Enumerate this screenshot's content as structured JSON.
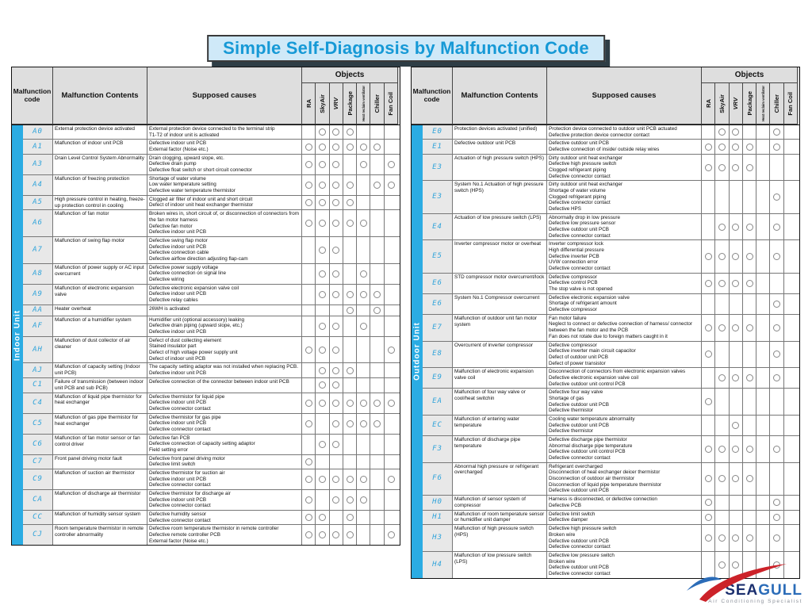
{
  "title": "Simple Self-Diagnosis by Malfunction Code",
  "columns": {
    "code_header": "Malfunction\ncode",
    "contents_header": "Malfunction Contents",
    "causes_header": "Supposed causes",
    "objects_header": "Objects",
    "object_cols": [
      "RA",
      "SkyAir",
      "VRV",
      "Package",
      "Heat reclaim ventilator",
      "Chiller",
      "Fan Coil"
    ]
  },
  "colors": {
    "title_text": "#1699d6",
    "title_bg": "#cfe9f8",
    "group_strip": "#2bace3",
    "code_text": "#2fa3da",
    "header_bg": "#dedede"
  },
  "tables": [
    {
      "group": "Indoor Unit",
      "rows": [
        {
          "code": "A0",
          "contents": "External protection device activated",
          "causes": [
            "External protection device connected to the terminal strip",
            "T1-T2 of indoor unit is activated"
          ],
          "marks": [
            0,
            1,
            1,
            1,
            0,
            0,
            0
          ]
        },
        {
          "code": "A1",
          "contents": "Malfunction of indoor unit PCB",
          "causes": [
            "Defective indoor unit PCB",
            "External factor (Noise etc.)"
          ],
          "marks": [
            1,
            1,
            1,
            1,
            1,
            1,
            0
          ]
        },
        {
          "code": "A3",
          "contents": "Drain Level Control System Abnormality",
          "causes": [
            "Drain clogging, upward slope, etc.",
            "Defective drain pump",
            "Defective float switch or short circuit connector"
          ],
          "marks": [
            1,
            1,
            1,
            0,
            1,
            0,
            1
          ]
        },
        {
          "code": "A4",
          "contents": "Malfunction of freezing protection",
          "causes": [
            "Shortage of water volume",
            "Low water temperature setting",
            "Defective water temperature thermistor"
          ],
          "marks": [
            1,
            1,
            1,
            1,
            0,
            1,
            1
          ]
        },
        {
          "code": "A5",
          "contents": "High pressure control in heating, freeze-up protection control in cooling",
          "causes": [
            "Clogged air filter of indoor unit and short circuit",
            "Defect of indoor unit heat exchanger thermistor"
          ],
          "marks": [
            1,
            1,
            1,
            1,
            0,
            0,
            0
          ]
        },
        {
          "code": "A6",
          "contents": "Malfunction of fan motor",
          "causes": [
            "Broken wires in, short circuit of, or disconnection of connectors from the fan motor harness",
            "Defective fan motor",
            "Defective indoor unit PCB"
          ],
          "marks": [
            1,
            1,
            1,
            1,
            1,
            0,
            0
          ]
        },
        {
          "code": "A7",
          "contents": "Malfunction of swing flap motor",
          "causes": [
            "Defective swing flap motor",
            "Defective indoor unit PCB",
            "Defective connection cable",
            "Defective airflow direction adjusting flap-cam"
          ],
          "marks": [
            0,
            1,
            1,
            0,
            0,
            0,
            0
          ]
        },
        {
          "code": "A8",
          "contents": "Malfunction of power supply or AC input overcurrent",
          "causes": [
            "Defective power supply voltage",
            "Defective connection on signal line",
            "Defective wiring"
          ],
          "marks": [
            0,
            1,
            1,
            0,
            1,
            0,
            0
          ]
        },
        {
          "code": "A9",
          "contents": "Malfunction of electronic expansion valve",
          "causes": [
            "Defective electronic expansion valve coil",
            "Defective indoor unit PCB",
            "Defective relay cables"
          ],
          "marks": [
            0,
            1,
            1,
            1,
            1,
            1,
            0
          ]
        },
        {
          "code": "AA",
          "contents": "Heater overheat",
          "causes": [
            "26WH is activated"
          ],
          "marks": [
            0,
            0,
            0,
            1,
            0,
            1,
            0
          ]
        },
        {
          "code": "AF",
          "contents": "Malfunction of a humidifier system",
          "causes": [
            "Humidifier unit (optional accessory) leaking",
            "Defective drain piping (upward slope, etc.)",
            "Defective indoor unit PCB"
          ],
          "marks": [
            0,
            1,
            1,
            0,
            1,
            0,
            0
          ]
        },
        {
          "code": "AH",
          "contents": "Malfunction of dust collector of air cleaner",
          "causes": [
            "Defect of dust collecting element",
            "Stained insulator part",
            "Defect of high voltage power supply unit",
            "Defect of indoor unit PCB"
          ],
          "marks": [
            1,
            1,
            1,
            0,
            0,
            0,
            1
          ]
        },
        {
          "code": "AJ",
          "contents": "Malfunction of capacity setting (Indoor unit PCB)",
          "causes": [
            "The capacity setting adaptor was not installed when replacing PCB.",
            "Defective indoor unit PCB"
          ],
          "marks": [
            0,
            1,
            1,
            1,
            0,
            0,
            0
          ]
        },
        {
          "code": "C1",
          "contents": "Failure of transmission (between indoor unit PCB and sub PCB)",
          "causes": [
            "Defective connection of the connector between indoor unit PCB"
          ],
          "marks": [
            0,
            1,
            1,
            0,
            0,
            0,
            0
          ]
        },
        {
          "code": "C4",
          "contents": "Malfunction of liquid pipe thermistor for heat exchanger",
          "causes": [
            "Defective thermistor for liquid pipe",
            "Defective indoor unit PCB",
            "Defective connector contact"
          ],
          "marks": [
            1,
            1,
            1,
            1,
            1,
            1,
            1
          ]
        },
        {
          "code": "C5",
          "contents": "Malfunction of gas pipe thermistor for heat exchanger",
          "causes": [
            "Defective thermistor for gas pipe",
            "Defective indoor unit PCB",
            "Defective connector contact"
          ],
          "marks": [
            1,
            0,
            1,
            1,
            1,
            1,
            0
          ]
        },
        {
          "code": "C6",
          "contents": "Malfunction of fan motor sensor or fan control driver",
          "causes": [
            "Defective fan PCB",
            "Defective connection of capacity setting adaptor",
            "Field setting error"
          ],
          "marks": [
            0,
            1,
            1,
            0,
            0,
            0,
            0
          ]
        },
        {
          "code": "C7",
          "contents": "Front panel driving motor fault",
          "causes": [
            "Defective front panel driving motor",
            "Defective limit switch"
          ],
          "marks": [
            1,
            0,
            0,
            0,
            0,
            0,
            0
          ]
        },
        {
          "code": "C9",
          "contents": "Malfunction of suction air thermistor",
          "causes": [
            "Defective thermistor for suction air",
            "Defective indoor unit PCB",
            "Defective connector contact"
          ],
          "marks": [
            1,
            1,
            1,
            1,
            1,
            0,
            1
          ]
        },
        {
          "code": "CA",
          "contents": "Malfunction of discharge air thermistor",
          "causes": [
            "Defective thermistor for discharge air",
            "Defective indoor unit PCB",
            "Defective connector contact"
          ],
          "marks": [
            1,
            0,
            1,
            1,
            1,
            0,
            0
          ]
        },
        {
          "code": "CC",
          "contents": "Malfunction of humidity sensor system",
          "causes": [
            "Defective humidity sensor",
            "Defective connector contact"
          ],
          "marks": [
            1,
            1,
            0,
            1,
            0,
            0,
            0
          ]
        },
        {
          "code": "CJ",
          "contents": "Room temperature thermistor in remote controller abnormality",
          "causes": [
            "Defective room temperature thermistor in remote controller",
            "Defective remote controller PCB",
            "External factor (Noise etc.)"
          ],
          "marks": [
            1,
            1,
            1,
            1,
            0,
            0,
            1
          ]
        }
      ]
    },
    {
      "group": "Outdoor Unit",
      "rows": [
        {
          "code": "E0",
          "contents": "Protection devices activated (unified)",
          "causes": [
            "Protection device connected to outdoor unit PCB actuated",
            "Defective protection device connector contact"
          ],
          "marks": [
            0,
            1,
            1,
            0,
            0,
            1,
            0
          ]
        },
        {
          "code": "E1",
          "contents": "Defective outdoor unit PCB",
          "causes": [
            "Defective outdoor unit PCB",
            "Defective connection of inside/ outside relay wires"
          ],
          "marks": [
            1,
            1,
            1,
            1,
            0,
            1,
            0
          ]
        },
        {
          "code": "E3",
          "contents": "Actuation of high pressure switch (HPS)",
          "causes": [
            "Dirty outdoor unit heat exchanger",
            "Defective high pressure switch",
            "Clogged refrigerant piping",
            "Defective connector contact"
          ],
          "marks": [
            1,
            1,
            1,
            1,
            0,
            0,
            0
          ]
        },
        {
          "code": "E3",
          "contents": "System No.1 Actuation of high pressure switch (HPS)",
          "causes": [
            "Dirty outdoor unit heat exchanger",
            "Shortage of water volume",
            "Clogged refrigerant piping",
            "Defective connector contact",
            "Defective HPS"
          ],
          "marks": [
            0,
            0,
            0,
            0,
            0,
            1,
            0
          ]
        },
        {
          "code": "E4",
          "contents": "Actuation of low pressure switch (LPS)",
          "causes": [
            "Abnormally drop in low pressure",
            "Defective low pressure sensor",
            "Defective outdoor unit PCB",
            "Defective connector contact"
          ],
          "marks": [
            0,
            1,
            1,
            1,
            0,
            1,
            0
          ]
        },
        {
          "code": "E5",
          "contents": "Inverter compressor motor or overheat",
          "causes": [
            "Inverter compressor lock",
            "High differential pressure",
            "Defective inverter PCB",
            "UVW connection error",
            "Defective connector contact"
          ],
          "marks": [
            1,
            1,
            1,
            1,
            0,
            1,
            0
          ]
        },
        {
          "code": "E6",
          "contents": "STD compressor motor overcurrent/lock",
          "causes": [
            "Defective compressor",
            "Defective control PCB",
            "The stop valve is not opened"
          ],
          "marks": [
            1,
            1,
            1,
            1,
            0,
            0,
            0
          ]
        },
        {
          "code": "E6",
          "contents": "System No.1 Compressor overcurrent",
          "causes": [
            "Defective electronic expansion valve",
            "Shortage of refrigerant amount",
            "Defective compressor"
          ],
          "marks": [
            0,
            0,
            0,
            0,
            0,
            1,
            0
          ]
        },
        {
          "code": "E7",
          "contents": "Malfunction of outdoor unit fan motor system",
          "causes": [
            "Fan motor failure",
            "Neglect to connect or defective connection of harness/ connector between the fan motor and the PCB",
            "Fan does not rotate due to foreign matters caught in it"
          ],
          "marks": [
            1,
            1,
            1,
            1,
            0,
            1,
            0
          ]
        },
        {
          "code": "E8",
          "contents": "Overcurrent of inverter compressor",
          "causes": [
            "Defective compressor",
            "Defective inverter main circuit capacitor",
            "Defect of outdoor unit PCB",
            "Defect of power transistor"
          ],
          "marks": [
            1,
            0,
            0,
            0,
            0,
            1,
            0
          ]
        },
        {
          "code": "E9",
          "contents": "Malfunction of electronic expansion valve coil",
          "causes": [
            "Disconnection of connectors from electronic expansion valves",
            "Defective electronic expansion valve coil",
            "Defective outdoor unit control PCB"
          ],
          "marks": [
            0,
            1,
            1,
            1,
            0,
            1,
            0
          ]
        },
        {
          "code": "EA",
          "contents": "Malfunction of four way valve or cool/heat switchin",
          "causes": [
            "Defective four way valve",
            "Shortage of gas",
            "Defective outdoor unit PCB",
            "Defective thermistor"
          ],
          "marks": [
            1,
            0,
            0,
            0,
            0,
            0,
            0
          ]
        },
        {
          "code": "EC",
          "contents": "Malfunction of entering water temperature",
          "causes": [
            "Cooling water temperature abnormality",
            "Defective outdoor unit PCB",
            "Defective thermistor"
          ],
          "marks": [
            0,
            0,
            1,
            0,
            0,
            0,
            0
          ]
        },
        {
          "code": "F3",
          "contents": "Malfunction of discharge pipe temperature",
          "causes": [
            "Defective discharge pipe thermistor",
            "Abnormal discharge pipe temperature",
            "Defective outdoor unit control PCB",
            "Defective connector contact"
          ],
          "marks": [
            1,
            1,
            1,
            1,
            0,
            1,
            0
          ]
        },
        {
          "code": "F6",
          "contents": "Abnormal high pressure or refrigerant overcharged",
          "causes": [
            "Refrigerant overcharged",
            "Disconnection of heat exchanger deicer thermistor",
            "Disconnection of outdoor air thermistor",
            "Disconnection of liquid pipe temperature thermistor",
            "Defective outdoor unit PCB"
          ],
          "marks": [
            1,
            1,
            1,
            1,
            0,
            0,
            0
          ]
        },
        {
          "code": "H0",
          "contents": "Malfunction of sensor system of compressor",
          "causes": [
            "Harness is disconnected, or defective connection",
            "Defective PCB"
          ],
          "marks": [
            1,
            0,
            0,
            0,
            0,
            1,
            0
          ]
        },
        {
          "code": "H1",
          "contents": "Malfunction of room temperature sensor or humidifier unit damper",
          "causes": [
            "Defective limit switch",
            "Defective damper"
          ],
          "marks": [
            1,
            0,
            0,
            0,
            0,
            1,
            0
          ]
        },
        {
          "code": "H3",
          "contents": "Malfunction of high pressure switch (HPS)",
          "causes": [
            "Defective high pressure switch",
            "Broken wire",
            "Defective outdoor unit PCB",
            "Defective connector contact"
          ],
          "marks": [
            1,
            1,
            1,
            1,
            0,
            1,
            0
          ]
        },
        {
          "code": "H4",
          "contents": "Malfunction of low pressure switch (LPS)",
          "causes": [
            "Defective low pressure switch",
            "Broken wire",
            "Defective outdoor unit PCB",
            "Defective connector contact"
          ],
          "marks": [
            0,
            1,
            1,
            0,
            0,
            1,
            0
          ]
        }
      ]
    }
  ],
  "logo": {
    "name_primary": "SEA",
    "name_secondary": "GULL",
    "tagline": "Air Conditioning Specialist"
  }
}
